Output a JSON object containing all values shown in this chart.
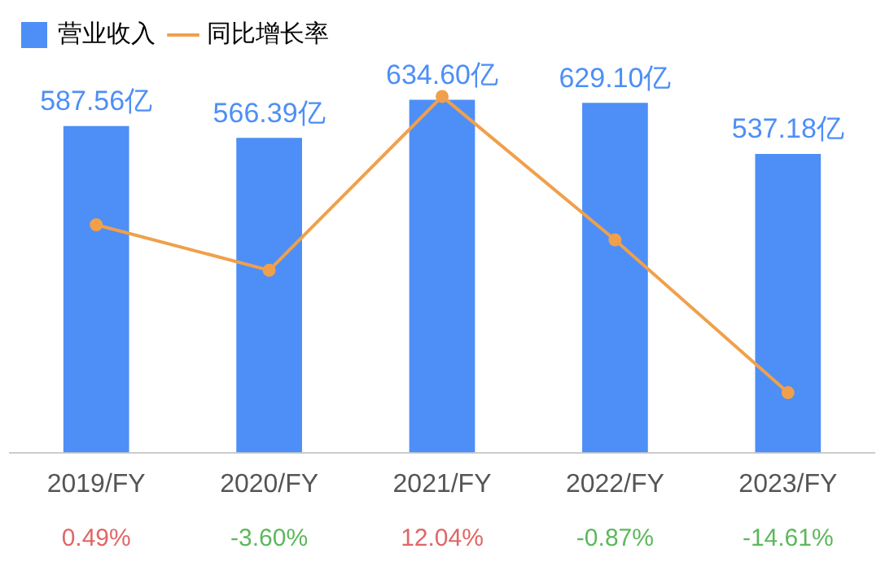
{
  "chart_data": {
    "type": "bar",
    "categories": [
      "2019/FY",
      "2020/FY",
      "2021/FY",
      "2022/FY",
      "2023/FY"
    ],
    "series": [
      {
        "name": "营业收入",
        "color": "#4d8ff6",
        "values": [
          587.56,
          566.39,
          634.6,
          629.1,
          537.18
        ],
        "value_labels": [
          "587.56亿",
          "566.39亿",
          "634.60亿",
          "629.10亿",
          "537.18亿"
        ]
      },
      {
        "name": "同比增长率",
        "type": "line",
        "axis": "y2",
        "color": "#f0a04b",
        "values": [
          0.49,
          -3.6,
          12.04,
          -0.87,
          -14.61
        ],
        "value_labels": [
          "0.49%",
          "-3.60%",
          "12.04%",
          "-0.87%",
          "-14.61%"
        ]
      }
    ],
    "legend": "top left",
    "grid": false,
    "marker": "circle"
  }
}
